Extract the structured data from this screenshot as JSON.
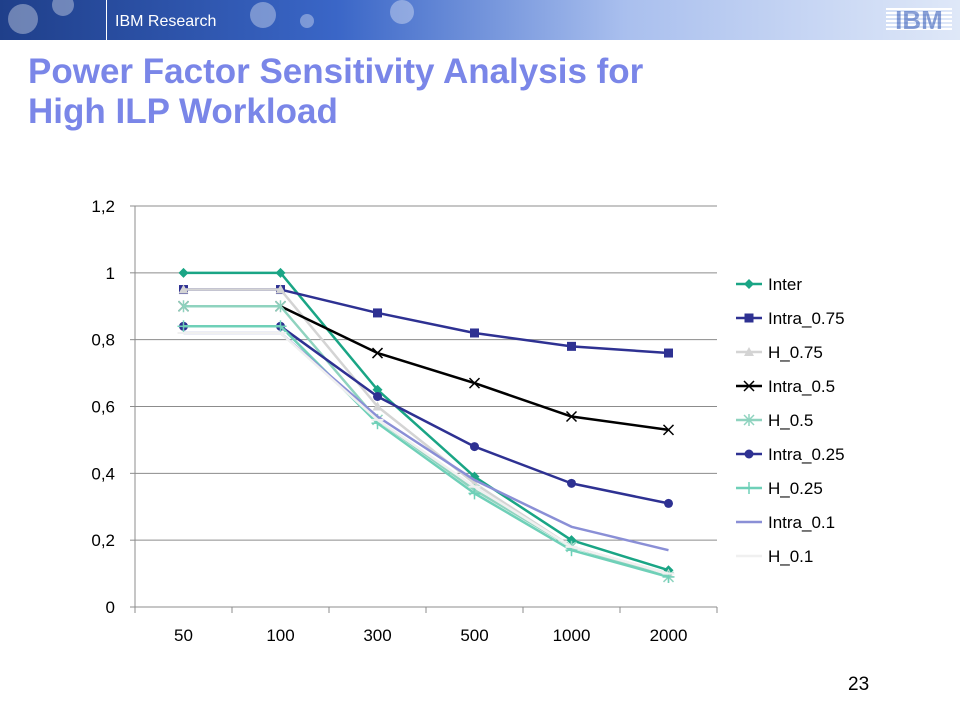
{
  "header": {
    "brand": "IBM Research",
    "logo": "IBM"
  },
  "slide": {
    "title_line1": "Power Factor Sensitivity Analysis for",
    "title_line2": "High ILP Workload",
    "page_number": "23"
  },
  "chart_data": {
    "type": "line",
    "categories": [
      "50",
      "100",
      "300",
      "500",
      "1000",
      "2000"
    ],
    "ylim": [
      0,
      1.2
    ],
    "yticks": [
      "0",
      "0,2",
      "0,4",
      "0,6",
      "0,8",
      "1",
      "1,2"
    ],
    "ytick_values": [
      0,
      0.2,
      0.4,
      0.6,
      0.8,
      1.0,
      1.2
    ],
    "grid": "horizontal",
    "legend_position": "right",
    "series": [
      {
        "name": "Inter",
        "color": "#1aa585",
        "marker": "diamond",
        "values": [
          1.0,
          1.0,
          0.65,
          0.39,
          0.2,
          0.11
        ]
      },
      {
        "name": "Intra_0.75",
        "color": "#2e3192",
        "marker": "square",
        "values": [
          0.95,
          0.95,
          0.88,
          0.82,
          0.78,
          0.76
        ]
      },
      {
        "name": "H_0.75",
        "color": "#d4d4d4",
        "marker": "triangle",
        "values": [
          0.95,
          0.95,
          0.6,
          0.37,
          0.18,
          0.1
        ]
      },
      {
        "name": "Intra_0.5",
        "color": "#000000",
        "marker": "x",
        "values": [
          0.9,
          0.9,
          0.76,
          0.67,
          0.57,
          0.53
        ]
      },
      {
        "name": "H_0.5",
        "color": "#8fd3bf",
        "marker": "star",
        "values": [
          0.9,
          0.9,
          0.56,
          0.35,
          0.18,
          0.09
        ]
      },
      {
        "name": "Intra_0.25",
        "color": "#2e3192",
        "marker": "circle",
        "values": [
          0.84,
          0.84,
          0.63,
          0.48,
          0.37,
          0.31
        ]
      },
      {
        "name": "H_0.25",
        "color": "#6fd0b8",
        "marker": "plus",
        "values": [
          0.84,
          0.84,
          0.55,
          0.34,
          0.17,
          0.09
        ]
      },
      {
        "name": "Intra_0.1",
        "color": "#8a8fd6",
        "marker": "none",
        "values": [
          0.82,
          0.82,
          0.57,
          0.38,
          0.24,
          0.17
        ]
      },
      {
        "name": "H_0.1",
        "color": "#f0f0f0",
        "marker": "dash",
        "values": [
          0.82,
          0.82,
          0.56,
          0.36,
          0.18,
          0.1
        ]
      }
    ]
  }
}
